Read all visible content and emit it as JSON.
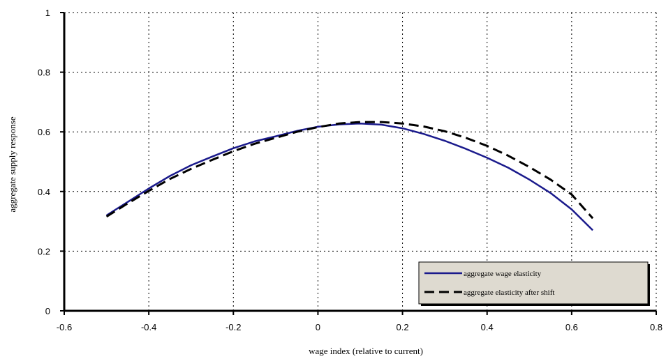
{
  "chart_data": {
    "type": "line",
    "title": "",
    "xlabel": "wage index (relative to current)",
    "ylabel": "aggregate supply response",
    "xlim": [
      -0.6,
      0.8
    ],
    "ylim": [
      0,
      1
    ],
    "xticks": [
      -0.6,
      -0.4,
      -0.2,
      0,
      0.2,
      0.4,
      0.6,
      0.8
    ],
    "xtick_labels": [
      "-0.6",
      "-0.4",
      "-0.2",
      "0",
      "0.2",
      "0.4",
      "0.6",
      "0.8"
    ],
    "yticks": [
      0,
      0.2,
      0.4,
      0.6,
      0.8,
      1
    ],
    "ytick_labels": [
      "0",
      "0.2",
      "0.4",
      "0.6",
      "0.8",
      "1"
    ],
    "grid": true,
    "legend_position": "bottom-right",
    "series": [
      {
        "name": "aggregate wage elasticity",
        "style": "solid",
        "color": "#1a1a8c",
        "x": [
          -0.5,
          -0.45,
          -0.4,
          -0.35,
          -0.3,
          -0.25,
          -0.2,
          -0.15,
          -0.1,
          -0.05,
          0.0,
          0.05,
          0.1,
          0.15,
          0.2,
          0.25,
          0.3,
          0.35,
          0.4,
          0.45,
          0.5,
          0.55,
          0.6,
          0.65
        ],
        "y": [
          0.32,
          0.365,
          0.41,
          0.452,
          0.488,
          0.517,
          0.545,
          0.568,
          0.585,
          0.603,
          0.617,
          0.625,
          0.628,
          0.624,
          0.612,
          0.593,
          0.57,
          0.543,
          0.513,
          0.48,
          0.44,
          0.395,
          0.34,
          0.27
        ]
      },
      {
        "name": "aggregate elasticity after shift",
        "style": "dashed",
        "color": "#000000",
        "x": [
          -0.5,
          -0.45,
          -0.4,
          -0.35,
          -0.3,
          -0.25,
          -0.2,
          -0.15,
          -0.1,
          -0.05,
          0.0,
          0.05,
          0.1,
          0.15,
          0.2,
          0.25,
          0.3,
          0.35,
          0.4,
          0.45,
          0.5,
          0.55,
          0.6,
          0.65
        ],
        "y": [
          0.316,
          0.36,
          0.402,
          0.442,
          0.476,
          0.506,
          0.535,
          0.56,
          0.58,
          0.6,
          0.616,
          0.628,
          0.633,
          0.633,
          0.628,
          0.618,
          0.602,
          0.58,
          0.553,
          0.52,
          0.482,
          0.44,
          0.39,
          0.31
        ]
      }
    ]
  }
}
